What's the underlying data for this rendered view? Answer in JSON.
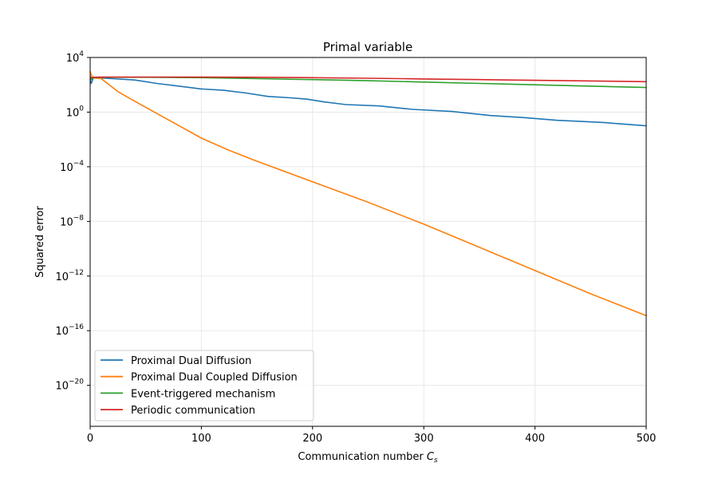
{
  "chart_data": {
    "type": "line",
    "title": "Primal variable",
    "xlabel_main": "Communication number ",
    "xlabel_var": "C",
    "xlabel_sub": "s",
    "ylabel": "Squared error",
    "xlim": [
      0,
      500
    ],
    "ylim_exp": [
      -23,
      4
    ],
    "yscale": "log",
    "grid": true,
    "legend_position": "lower-left",
    "x_ticks": [
      0,
      100,
      200,
      300,
      400,
      500
    ],
    "x_tick_labels": [
      "0",
      "100",
      "200",
      "300",
      "400",
      "500"
    ],
    "y_ticks_exp": [
      4,
      0,
      -4,
      -8,
      -12,
      -16,
      -20
    ],
    "y_tick_base": "10",
    "y_tick_exponents": [
      "4",
      "0",
      "−4",
      "−8",
      "−12",
      "−16",
      "−20"
    ],
    "series": [
      {
        "name": "Proximal Dual Diffusion",
        "color": "#1f77b4",
        "x": [
          0,
          1,
          3,
          10,
          20,
          40,
          60,
          80,
          100,
          120,
          140,
          160,
          180,
          195,
          210,
          230,
          260,
          290,
          325,
          360,
          390,
          420,
          460,
          500
        ],
        "log10_y": [
          2.4,
          2.1,
          2.55,
          2.5,
          2.45,
          2.35,
          2.1,
          1.9,
          1.7,
          1.6,
          1.4,
          1.15,
          1.05,
          0.95,
          0.75,
          0.55,
          0.45,
          0.2,
          0.05,
          -0.25,
          -0.4,
          -0.6,
          -0.75,
          -1.0
        ]
      },
      {
        "name": "Proximal Dual Coupled Diffusion",
        "color": "#ff7f0e",
        "x": [
          0,
          1,
          3,
          10,
          25,
          40,
          60,
          80,
          100,
          125,
          150,
          200,
          250,
          300,
          350,
          400,
          450,
          500
        ],
        "log10_y": [
          3.0,
          2.7,
          2.5,
          2.45,
          1.5,
          0.8,
          -0.1,
          -1.0,
          -1.9,
          -2.8,
          -3.6,
          -5.1,
          -6.6,
          -8.2,
          -9.9,
          -11.6,
          -13.3,
          -14.9
        ]
      },
      {
        "name": "Event-triggered mechanism",
        "color": "#2ca02c",
        "x": [
          0,
          1,
          3,
          10,
          50,
          100,
          150,
          200,
          250,
          300,
          350,
          400,
          450,
          500
        ],
        "log10_y": [
          2.6,
          2.4,
          2.52,
          2.55,
          2.55,
          2.52,
          2.45,
          2.38,
          2.3,
          2.2,
          2.1,
          2.0,
          1.9,
          1.8
        ]
      },
      {
        "name": "Periodic communication",
        "color": "#d62728",
        "x": [
          0,
          1,
          3,
          10,
          50,
          100,
          150,
          200,
          250,
          300,
          350,
          400,
          450,
          500
        ],
        "log10_y": [
          2.6,
          2.5,
          2.55,
          2.56,
          2.57,
          2.56,
          2.55,
          2.52,
          2.48,
          2.43,
          2.38,
          2.33,
          2.28,
          2.23
        ]
      }
    ]
  }
}
